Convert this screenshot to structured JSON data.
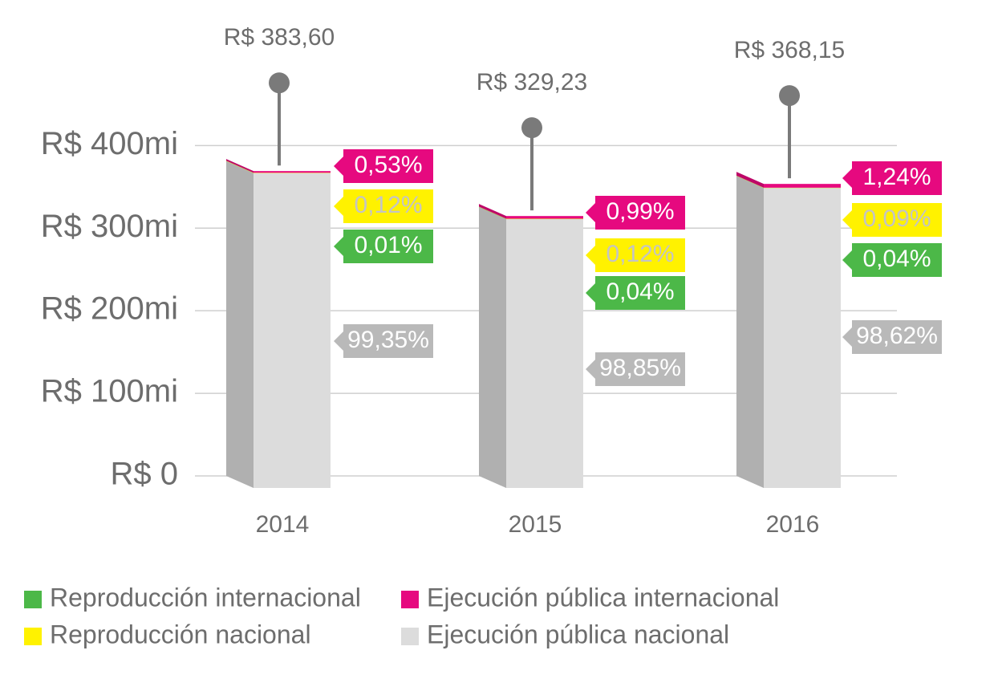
{
  "chart_data": {
    "type": "bar",
    "stacked": true,
    "categories": [
      "2014",
      "2015",
      "2016"
    ],
    "totals": {
      "values": [
        383.6,
        329.23,
        368.15
      ],
      "value_labels": [
        "R$ 383,60",
        "R$ 329,23",
        "R$ 368,15"
      ]
    },
    "series": [
      {
        "name": "Ejecución pública nacional",
        "color": "#dcdcdc",
        "values": [
          99.35,
          98.85,
          98.62
        ],
        "value_labels": [
          "99,35%",
          "98,85%",
          "98,62%"
        ]
      },
      {
        "name": "Reproducción internacional",
        "color": "#4cb848",
        "values": [
          0.01,
          0.04,
          0.04
        ],
        "value_labels": [
          "0,01%",
          "0,04%",
          "0,04%"
        ]
      },
      {
        "name": "Reproducción nacional",
        "color": "#fff200",
        "values": [
          0.12,
          0.12,
          0.09
        ],
        "value_labels": [
          "0,12%",
          "0,12%",
          "0,09%"
        ]
      },
      {
        "name": "Ejecución pública internacional",
        "color": "#e6097f",
        "values": [
          0.53,
          0.99,
          1.24
        ],
        "value_labels": [
          "0,53%",
          "0,99%",
          "1,24%"
        ]
      }
    ],
    "ylim": [
      0,
      480
    ],
    "yticks": [
      {
        "value": 0,
        "label": "R$ 0"
      },
      {
        "value": 100,
        "label": "R$ 100mi"
      },
      {
        "value": 200,
        "label": "R$ 200mi"
      },
      {
        "value": 300,
        "label": "R$ 300mi"
      },
      {
        "value": 400,
        "label": "R$ 400mi"
      }
    ],
    "grid": true
  }
}
